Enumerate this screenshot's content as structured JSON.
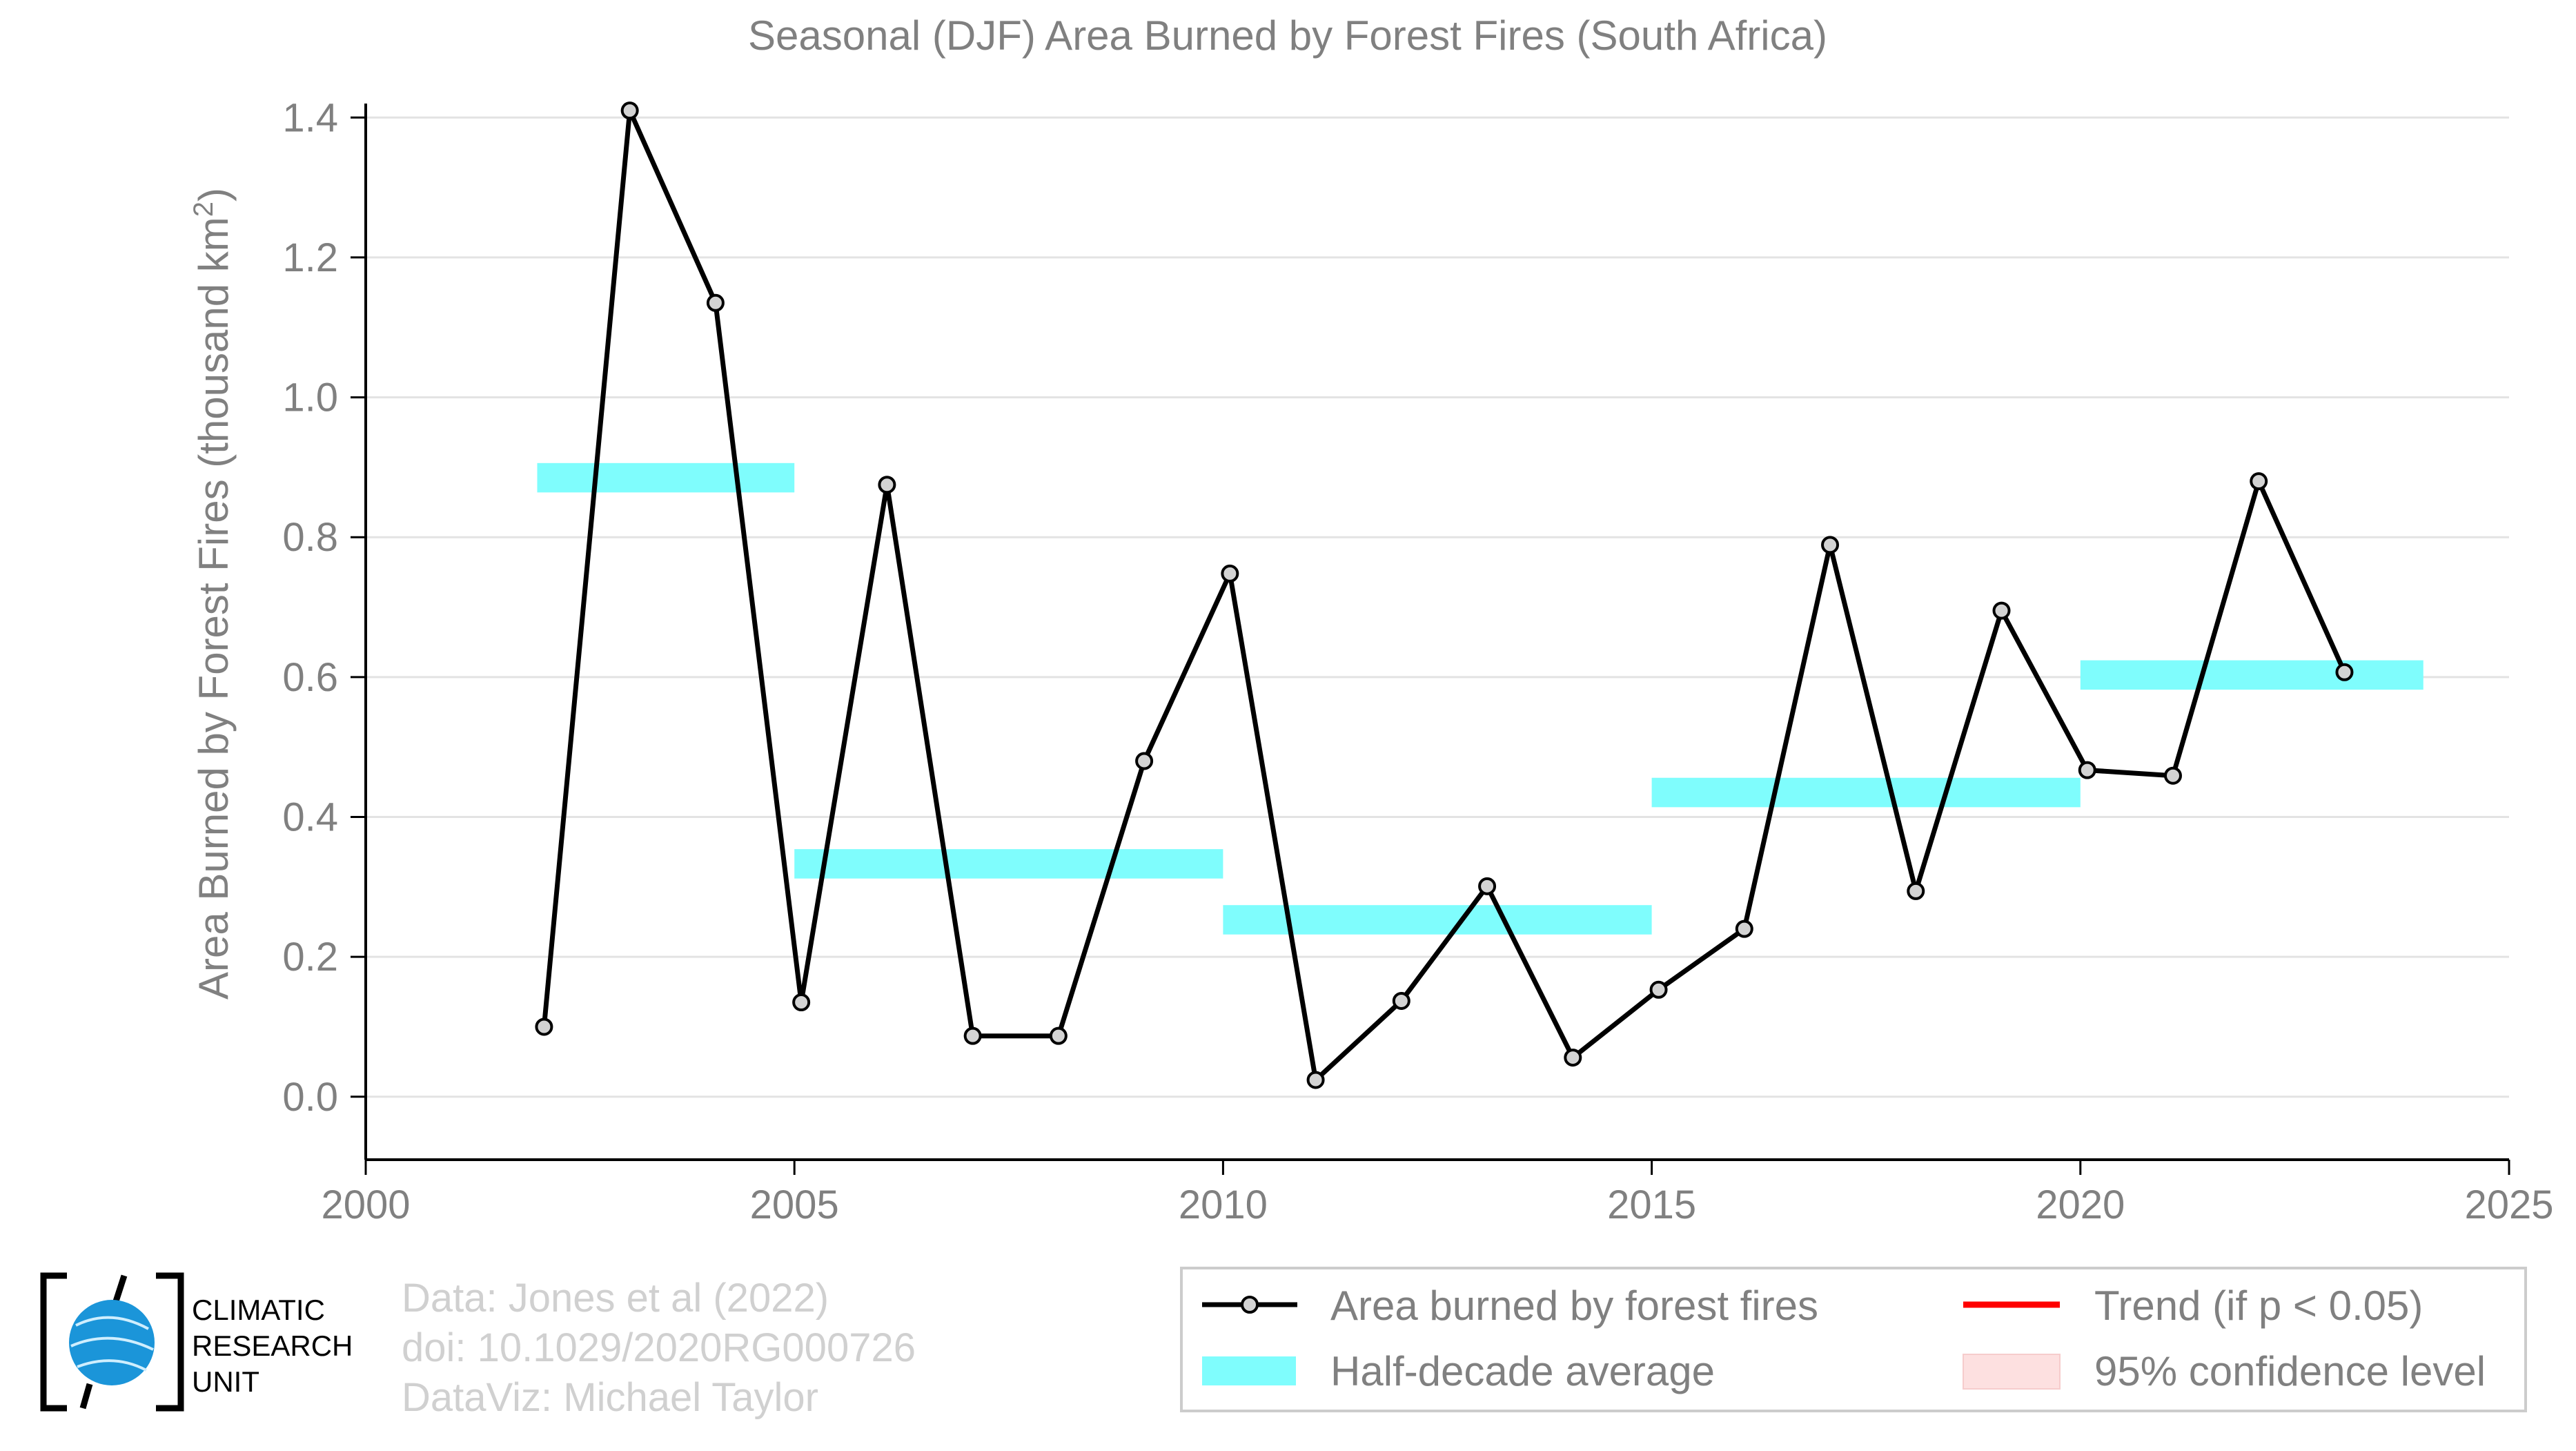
{
  "chart_data": {
    "type": "line",
    "title": "Seasonal (DJF) Area Burned by Forest Fires (South Africa)",
    "ylabel_main": "Area Burned by Forest Fires (thousand km",
    "ylabel_sup": "2",
    "ylabel_close": ")",
    "xlim": [
      2000,
      2025
    ],
    "ylim": [
      -0.09,
      1.42
    ],
    "x_ticks": [
      2000,
      2005,
      2010,
      2015,
      2020,
      2025
    ],
    "y_ticks": [
      0.0,
      0.2,
      0.4,
      0.6,
      0.8,
      1.0,
      1.2,
      1.4
    ],
    "y_tick_labels": [
      "0.0",
      "0.2",
      "0.4",
      "0.6",
      "0.8",
      "1.0",
      "1.2",
      "1.4"
    ],
    "grid": "horizontal",
    "series": [
      {
        "name": "Area burned by forest fires",
        "color": "#000000",
        "marker_fill": "#d3d3d3",
        "x": [
          2002.08,
          2003.08,
          2004.08,
          2005.08,
          2006.08,
          2007.08,
          2008.08,
          2009.08,
          2010.08,
          2011.08,
          2012.08,
          2013.08,
          2014.08,
          2015.08,
          2016.08,
          2017.08,
          2018.08,
          2019.08,
          2020.08,
          2021.08,
          2022.08,
          2023.08
        ],
        "y": [
          0.1,
          1.41,
          1.135,
          0.135,
          0.875,
          0.087,
          0.087,
          0.48,
          0.748,
          0.024,
          0.137,
          0.301,
          0.056,
          0.153,
          0.24,
          0.789,
          0.294,
          0.695,
          0.467,
          0.459,
          0.88,
          0.607
        ]
      }
    ],
    "half_decade_average": {
      "name": "Half-decade average",
      "color": "#7ffdfd",
      "segments": [
        {
          "x0": 2002,
          "x1": 2005,
          "y": 0.885
        },
        {
          "x0": 2005,
          "x1": 2010,
          "y": 0.333
        },
        {
          "x0": 2010,
          "x1": 2015,
          "y": 0.253
        },
        {
          "x0": 2015,
          "x1": 2020,
          "y": 0.435
        },
        {
          "x0": 2020,
          "x1": 2024,
          "y": 0.603
        }
      ]
    },
    "legend": {
      "placement": "bottom-right",
      "entries": [
        {
          "key": "series",
          "label": "Area burned by forest fires"
        },
        {
          "key": "trend",
          "label": "Trend (if p < 0.05)",
          "color": "#ff0000"
        },
        {
          "key": "half",
          "label": "Half-decade average"
        },
        {
          "key": "ci",
          "label": "95% confidence level",
          "color": "#fde0e0"
        }
      ]
    }
  },
  "credits": {
    "line1": "Data: Jones et al (2022)",
    "line2": "doi: 10.1029/2020RG000726",
    "line3": "DataViz: Michael Taylor"
  },
  "logo": {
    "line1": "CLIMATIC",
    "line2": "RESEARCH",
    "line3": "UNIT",
    "globe_color": "#1b95d9"
  }
}
